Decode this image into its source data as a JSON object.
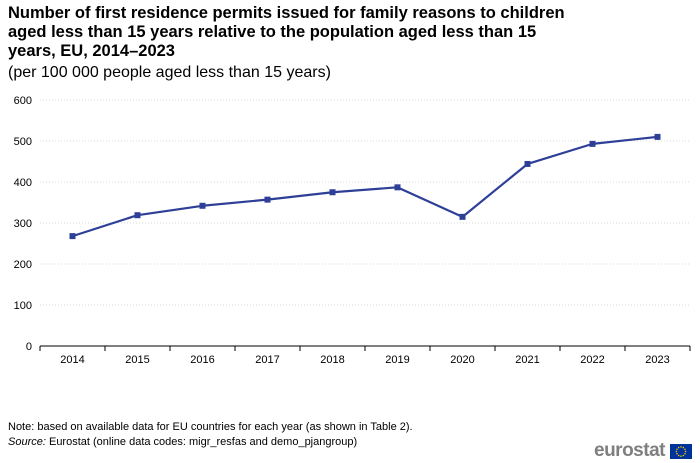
{
  "chart_data": {
    "type": "line",
    "title": "Number of first residence permits issued for family reasons to children aged less than 15 years relative to the population aged less than 15 years, EU, 2014–2023",
    "subtitle": "(per 100 000 people aged less than 15 years)",
    "categories": [
      "2014",
      "2015",
      "2016",
      "2017",
      "2018",
      "2019",
      "2020",
      "2021",
      "2022",
      "2023"
    ],
    "series": [
      {
        "name": "EU",
        "values": [
          268,
          319,
          342,
          357,
          375,
          387,
          315,
          444,
          493,
          510
        ]
      }
    ],
    "yticks": [
      "0",
      "100",
      "200",
      "300",
      "400",
      "500",
      "600"
    ],
    "ylim": [
      0,
      600
    ],
    "grid": true,
    "xlabel": "",
    "ylabel": "",
    "line_color": "#2e3f98"
  },
  "footer": {
    "note": "Note: based on available data for EU countries for each year (as shown in Table 2).",
    "source_label": "Source:",
    "source_text": " Eurostat (online data codes: migr_resfas and demo_pjangroup)"
  },
  "logo": {
    "text": "eurostat",
    "flag_icon": "eu-flag-icon"
  }
}
